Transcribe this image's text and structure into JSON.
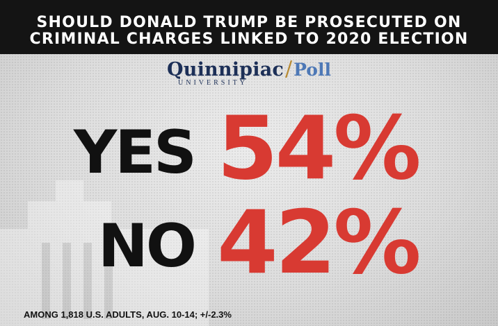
{
  "header": {
    "line1": "SHOULD DONALD TRUMP BE PROSECUTED ON",
    "line2": "CRIMINAL CHARGES LINKED TO 2020 ELECTION"
  },
  "logo": {
    "name": "Quinnipiac",
    "separator": "/",
    "product": "Poll",
    "subtitle": "UNIVERSITY",
    "colors": {
      "name": "#1c2f57",
      "separator": "#b78a33",
      "product": "#4d78b6"
    }
  },
  "results": [
    {
      "answer": "YES",
      "value": "54%"
    },
    {
      "answer": "NO",
      "value": "42%"
    }
  ],
  "footnote": "AMONG 1,818 U.S. ADULTS, AUG. 10-14; +/-2.3%",
  "colors": {
    "header_background": "#141414",
    "percent": "#d83a32",
    "answer": "#111111"
  }
}
